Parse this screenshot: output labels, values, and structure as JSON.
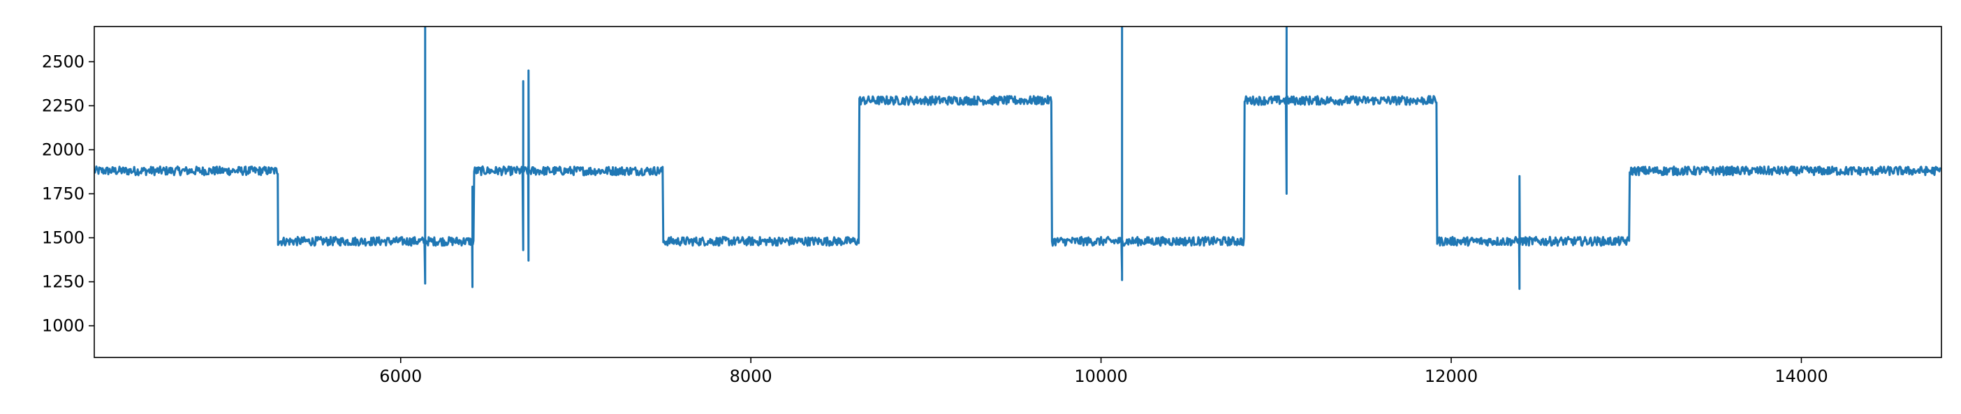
{
  "chart_data": {
    "type": "line",
    "title": "",
    "xlabel": "",
    "ylabel": "",
    "xlim": [
      4250,
      14800
    ],
    "ylim": [
      820,
      2700
    ],
    "x_ticks": [
      6000,
      8000,
      10000,
      12000,
      14000
    ],
    "x_tick_labels": [
      "6000",
      "8000",
      "10000",
      "12000",
      "14000"
    ],
    "y_ticks": [
      1000,
      1250,
      1500,
      1750,
      2000,
      2250,
      2500
    ],
    "y_tick_labels": [
      "1000",
      "1250",
      "1500",
      "1750",
      "2000",
      "2250",
      "2500"
    ],
    "grid": false,
    "legend": "none",
    "noise_amplitude": 25,
    "series": [
      {
        "color": "#1f77b4",
        "segments": [
          {
            "x_start": 4250,
            "x_end": 5300,
            "level": 1880
          },
          {
            "x_start": 5300,
            "x_end": 6420,
            "level": 1480
          },
          {
            "x_start": 6420,
            "x_end": 7500,
            "level": 1880
          },
          {
            "x_start": 7500,
            "x_end": 8620,
            "level": 1480
          },
          {
            "x_start": 8620,
            "x_end": 9720,
            "level": 2280
          },
          {
            "x_start": 9720,
            "x_end": 10820,
            "level": 1480
          },
          {
            "x_start": 10820,
            "x_end": 11920,
            "level": 2280
          },
          {
            "x_start": 11920,
            "x_end": 13020,
            "level": 1480
          },
          {
            "x_start": 13020,
            "x_end": 14800,
            "level": 1880
          }
        ],
        "spikes": [
          {
            "x": 6140,
            "values": [
              1240,
              2700,
              1360
            ]
          },
          {
            "x": 6410,
            "values": [
              1220,
              1790
            ]
          },
          {
            "x": 6700,
            "values": [
              1430,
              2390
            ]
          },
          {
            "x": 6730,
            "values": [
              1370,
              2450
            ]
          },
          {
            "x": 10120,
            "values": [
              1300,
              2700,
              1260
            ]
          },
          {
            "x": 11060,
            "values": [
              1750,
              2700,
              2200
            ]
          },
          {
            "x": 12390,
            "values": [
              1210,
              1850
            ]
          }
        ]
      }
    ]
  }
}
